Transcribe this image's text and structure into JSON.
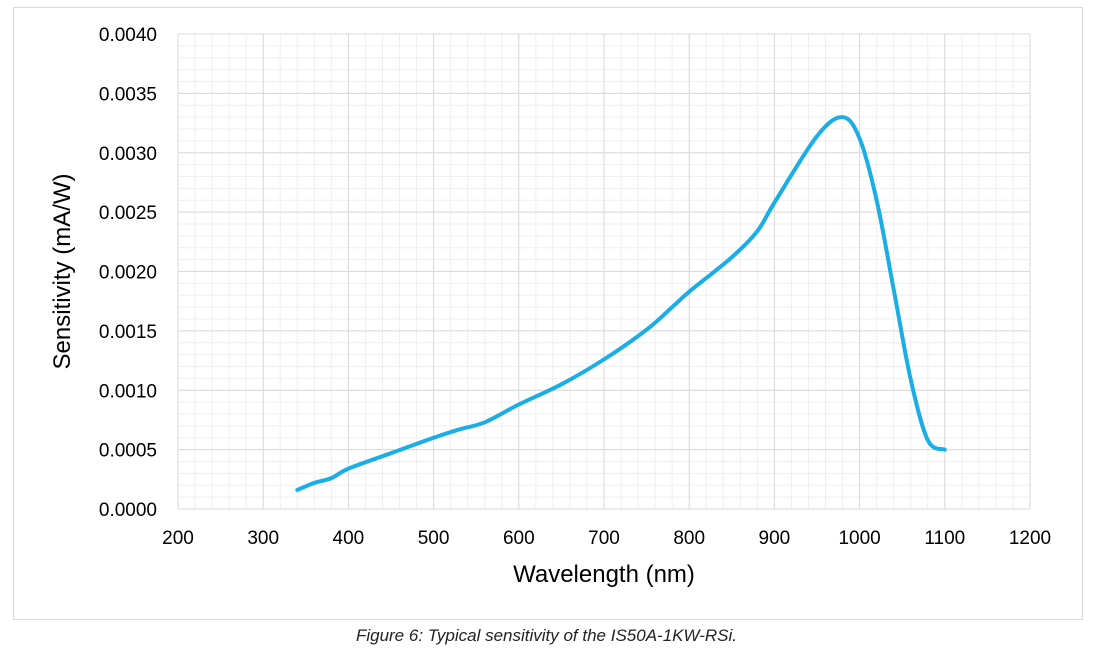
{
  "chart_data": {
    "type": "line",
    "xlabel": "Wavelength (nm)",
    "ylabel": "Sensitivity (mA/W)",
    "xlim": [
      200,
      1200
    ],
    "ylim": [
      0,
      0.004
    ],
    "xticks": [
      "200",
      "300",
      "400",
      "500",
      "600",
      "700",
      "800",
      "900",
      "1000",
      "1100",
      "1200"
    ],
    "yticks": [
      "0.0000",
      "0.0005",
      "0.0010",
      "0.0015",
      "0.0020",
      "0.0025",
      "0.0030",
      "0.0035",
      "0.0040"
    ],
    "grid": {
      "major": true,
      "minor": true
    },
    "series": [
      {
        "color": "#1aaee5",
        "x": [
          340,
          360,
          380,
          400,
          450,
          500,
          530,
          560,
          600,
          650,
          700,
          750,
          780,
          800,
          850,
          880,
          900,
          950,
          980,
          1000,
          1020,
          1040,
          1060,
          1080,
          1100
        ],
        "y": [
          0.00016,
          0.00022,
          0.00026,
          0.00034,
          0.00047,
          0.0006,
          0.00067,
          0.00073,
          0.00088,
          0.00105,
          0.00126,
          0.00151,
          0.0017,
          0.00183,
          0.00212,
          0.00234,
          0.00258,
          0.00314,
          0.0033,
          0.00312,
          0.0026,
          0.00185,
          0.00109,
          0.00058,
          0.0005
        ]
      }
    ]
  },
  "caption": "Figure 6: Typical sensitivity of the IS50A-1KW-RSi."
}
